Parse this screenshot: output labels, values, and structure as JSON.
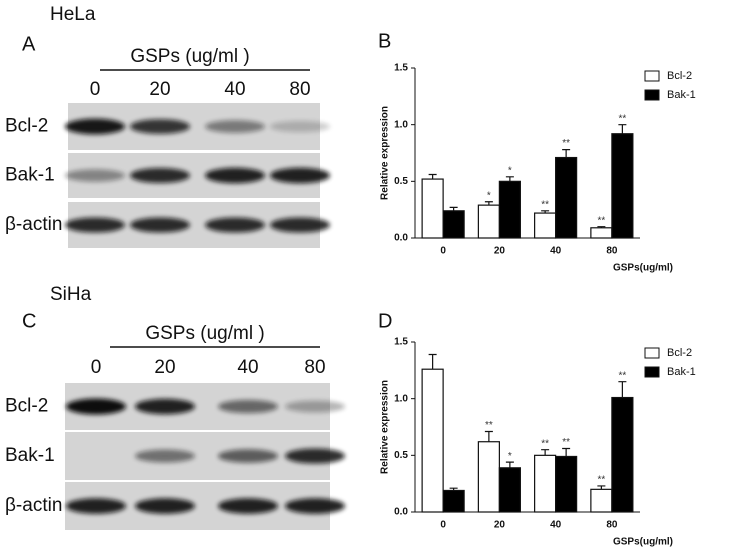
{
  "labels": {
    "hela": "HeLa",
    "siha": "SiHa",
    "a": "A",
    "b": "B",
    "c": "C",
    "d": "D"
  },
  "blots": [
    {
      "header": "GSPs (ug/ml )",
      "lanes": [
        "0",
        "20",
        "40",
        "80"
      ],
      "rows": [
        "Bcl-2",
        "Bak-1",
        "β-actin"
      ]
    },
    {
      "header": "GSPs (ug/ml )",
      "lanes": [
        "0",
        "20",
        "40",
        "80"
      ],
      "rows": [
        "Bcl-2",
        "Bak-1",
        "β-actin"
      ]
    }
  ],
  "chart_data": [
    {
      "type": "bar",
      "x_label": "GSPs(ug/ml)",
      "y_label": "Relative expression",
      "categories": [
        "0",
        "20",
        "40",
        "80"
      ],
      "ylim": [
        0,
        1.5
      ],
      "yticks": [
        {
          "value": 0,
          "label": "0.0"
        },
        {
          "value": 0.5,
          "label": "0.5"
        },
        {
          "value": 1,
          "label": "1.0"
        },
        {
          "value": 1.5,
          "label": "1.5"
        }
      ],
      "series": [
        {
          "name": "Bcl-2",
          "color": "#ffffff",
          "values": [
            0.52,
            0.29,
            0.22,
            0.09
          ],
          "errors": [
            0.04,
            0.03,
            0.02,
            0.01
          ],
          "annotations": [
            null,
            "*",
            "**",
            "**"
          ]
        },
        {
          "name": "Bak-1",
          "color": "#000000",
          "values": [
            0.24,
            0.5,
            0.71,
            0.92
          ],
          "errors": [
            0.03,
            0.04,
            0.07,
            0.08
          ],
          "annotations": [
            null,
            "*",
            "**",
            "**"
          ]
        }
      ]
    },
    {
      "type": "bar",
      "x_label": "GSPs(ug/ml)",
      "y_label": "Relative expression",
      "categories": [
        "0",
        "20",
        "40",
        "80"
      ],
      "ylim": [
        0,
        1.5
      ],
      "yticks": [
        {
          "value": 0,
          "label": "0.0"
        },
        {
          "value": 0.5,
          "label": "0.5"
        },
        {
          "value": 1,
          "label": "1.0"
        },
        {
          "value": 1.5,
          "label": "1.5"
        }
      ],
      "series": [
        {
          "name": "Bcl-2",
          "color": "#ffffff",
          "values": [
            1.26,
            0.62,
            0.5,
            0.2
          ],
          "errors": [
            0.13,
            0.09,
            0.05,
            0.03
          ],
          "annotations": [
            null,
            "**",
            "**",
            "**"
          ]
        },
        {
          "name": "Bak-1",
          "color": "#000000",
          "values": [
            0.19,
            0.39,
            0.49,
            1.01
          ],
          "errors": [
            0.02,
            0.05,
            0.07,
            0.14
          ],
          "annotations": [
            null,
            "*",
            "**",
            "**"
          ]
        }
      ]
    }
  ]
}
